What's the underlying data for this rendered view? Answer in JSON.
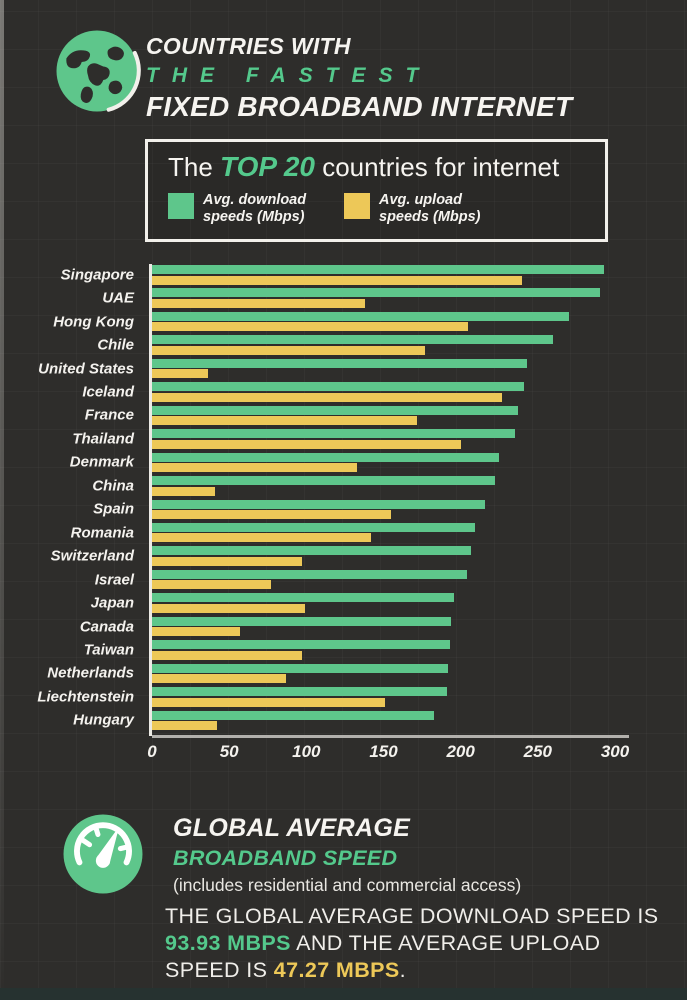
{
  "header": {
    "line1": "COUNTRIES WITH",
    "line2": "THE FASTEST",
    "line3": "FIXED BROADBAND INTERNET"
  },
  "top_box": {
    "title_prefix": "The ",
    "title_highlight": "TOP 20",
    "title_suffix": " countries for internet",
    "legend": [
      {
        "label_line1": "Avg. download",
        "label_line2": "speeds (Mbps)",
        "color": "#5ec68b"
      },
      {
        "label_line1": "Avg. upload",
        "label_line2": "speeds (Mbps)",
        "color": "#edc858"
      }
    ]
  },
  "chart_data": {
    "type": "bar",
    "orientation": "horizontal",
    "title": "The TOP 20 countries for internet",
    "categories": [
      "Singapore",
      "UAE",
      "Hong Kong",
      "Chile",
      "United States",
      "Iceland",
      "France",
      "Thailand",
      "Denmark",
      "China",
      "Spain",
      "Romania",
      "Switzerland",
      "Israel",
      "Japan",
      "Canada",
      "Taiwan",
      "Netherlands",
      "Liechtenstein",
      "Hungary"
    ],
    "series": [
      {
        "name": "Avg. download speeds (Mbps)",
        "color": "#5ec68b",
        "values": [
          293,
          290,
          270,
          260,
          243,
          241,
          237,
          235,
          225,
          222,
          216,
          209,
          207,
          204,
          196,
          194,
          193,
          192,
          191,
          183
        ]
      },
      {
        "name": "Avg. upload speeds (Mbps)",
        "color": "#edc858",
        "values": [
          240,
          138,
          205,
          177,
          36,
          227,
          172,
          200,
          133,
          41,
          155,
          142,
          97,
          77,
          99,
          57,
          97,
          87,
          151,
          42
        ]
      }
    ],
    "xlabel": "",
    "ylabel": "",
    "xlim": [
      0,
      300
    ],
    "x_ticks": [
      0,
      50,
      100,
      150,
      200,
      250,
      300
    ],
    "grid": false,
    "legend_position": "top"
  },
  "global_average": {
    "heading1": "GLOBAL AVERAGE",
    "heading2": "BROADBAND SPEED",
    "note": "(includes residential and commercial access)"
  },
  "footer": {
    "lines": [
      [
        {
          "text": "THE GLOBAL AVERAGE DOWNLOAD SPEED IS",
          "color": "white"
        }
      ],
      [
        {
          "text": "93.93 MBPS",
          "color": "green"
        },
        {
          "text": " AND THE AVERAGE UPLOAD",
          "color": "white"
        }
      ],
      [
        {
          "text": "SPEED IS ",
          "color": "white"
        },
        {
          "text": "47.27 MBPS",
          "color": "yellow"
        },
        {
          "text": ".",
          "color": "white"
        }
      ]
    ]
  },
  "colors": {
    "background": "#2e2d2b",
    "green": "#5ec68b",
    "yellow": "#edc858",
    "text_white": "#f6f4f0",
    "accent_text_green": "#54c98c"
  }
}
